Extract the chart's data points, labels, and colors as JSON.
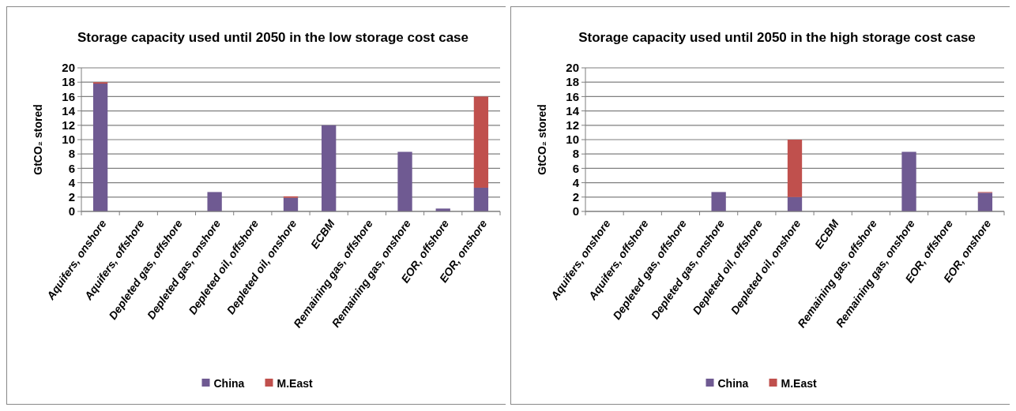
{
  "chart_data": [
    {
      "type": "bar",
      "stacked": true,
      "title": "Storage capacity used until 2050 in the low storage cost case",
      "ylabel": "GtCO₂ stored",
      "categories": [
        "Aquifers, onshore",
        "Aquifers, offshore",
        "Depleted gas, offshore",
        "Depleted gas, onshore",
        "Depleted oil, offshore",
        "Depleted oil, onshore",
        "ECBM",
        "Remaining gas, offshore",
        "Remaining gas, onshore",
        "EOR, offshore",
        "EOR, onshore"
      ],
      "series": [
        {
          "name": "China",
          "color": "#6f5a92",
          "values": [
            17.8,
            0,
            0,
            2.7,
            0,
            1.9,
            12,
            0,
            8.3,
            0.4,
            3.3
          ]
        },
        {
          "name": "M.East",
          "color": "#c0504d",
          "values": [
            0.2,
            0,
            0,
            0,
            0,
            0.2,
            0,
            0,
            0,
            0,
            12.7
          ]
        }
      ],
      "ylim": [
        0,
        20
      ],
      "yticks": [
        0,
        2,
        4,
        6,
        8,
        10,
        12,
        14,
        16,
        18,
        20
      ],
      "grid": "y",
      "legend": "bottom"
    },
    {
      "type": "bar",
      "stacked": true,
      "title": "Storage capacity used until 2050 in the high storage cost case",
      "ylabel": "GtCO₂ stored",
      "categories": [
        "Aquifers, onshore",
        "Aquifers, offshore",
        "Depleted gas, offshore",
        "Depleted gas, onshore",
        "Depleted oil, offshore",
        "Depleted oil, onshore",
        "ECBM",
        "Remaining gas, offshore",
        "Remaining gas, onshore",
        "EOR, offshore",
        "EOR, onshore"
      ],
      "series": [
        {
          "name": "China",
          "color": "#6f5a92",
          "values": [
            0,
            0,
            0,
            2.7,
            0,
            2,
            0,
            0,
            8.3,
            0,
            2.6
          ]
        },
        {
          "name": "M.East",
          "color": "#c0504d",
          "values": [
            0,
            0,
            0,
            0,
            0,
            8,
            0,
            0,
            0,
            0,
            0.1
          ]
        }
      ],
      "ylim": [
        0,
        20
      ],
      "yticks": [
        0,
        2,
        4,
        6,
        8,
        10,
        12,
        14,
        16,
        18,
        20
      ],
      "grid": "y",
      "legend": "bottom"
    }
  ]
}
